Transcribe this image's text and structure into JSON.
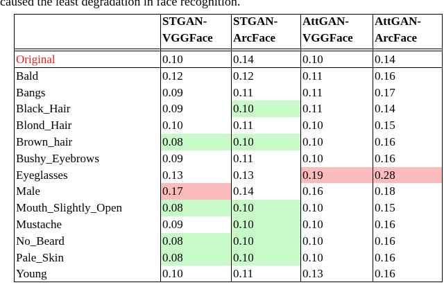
{
  "caption": "caused the least degradation in face recognition.",
  "table": {
    "header": [
      [
        "STGAN-",
        "VGGFace"
      ],
      [
        "STGAN-",
        "ArcFace"
      ],
      [
        "AttGAN-",
        "VGGFace"
      ],
      [
        "AttGAN-",
        "ArcFace"
      ]
    ],
    "rows": [
      [
        "Original",
        "0.10",
        "0.14",
        "0.10",
        "0.14"
      ],
      [
        "Bald",
        "0.12",
        "0.12",
        "0.11",
        "0.16"
      ],
      [
        "Bangs",
        "0.09",
        "0.11",
        "0.11",
        "0.17"
      ],
      [
        "Black_Hair",
        "0.09",
        "0.10",
        "0.11",
        "0.14"
      ],
      [
        "Blond_Hair",
        "0.10",
        "0.11",
        "0.10",
        "0.15"
      ],
      [
        "Brown_hair",
        "0.08",
        "0.10",
        "0.10",
        "0.16"
      ],
      [
        "Bushy_Eyebrows",
        "0.09",
        "0.11",
        "0.10",
        "0.16"
      ],
      [
        "Eyeglasses",
        "0.13",
        "0.13",
        "0.19",
        "0.28"
      ],
      [
        "Male",
        "0.17",
        "0.14",
        "0.16",
        "0.18"
      ],
      [
        "Mouth_Slightly_Open",
        "0.08",
        "0.10",
        "0.10",
        "0.15"
      ],
      [
        "Mustache",
        "0.09",
        "0.10",
        "0.10",
        "0.16"
      ],
      [
        "No_Beard",
        "0.08",
        "0.10",
        "0.10",
        "0.16"
      ],
      [
        "Pale_Skin",
        "0.08",
        "0.10",
        "0.10",
        "0.16"
      ],
      [
        "Young",
        "0.10",
        "0.11",
        "0.13",
        "0.16"
      ]
    ],
    "highlights": [
      {
        "color": "#c8fac8",
        "cells": [
          [
            3,
            2
          ],
          [
            5,
            1
          ],
          [
            5,
            2
          ],
          [
            9,
            1
          ],
          [
            9,
            2
          ],
          [
            10,
            2
          ],
          [
            11,
            1
          ],
          [
            11,
            2
          ],
          [
            12,
            1
          ],
          [
            12,
            2
          ]
        ]
      },
      {
        "color": "#fcbcbc",
        "cells": [
          [
            7,
            3
          ],
          [
            7,
            4
          ],
          [
            8,
            1
          ]
        ]
      }
    ],
    "first_row_color": "#e8201c"
  }
}
